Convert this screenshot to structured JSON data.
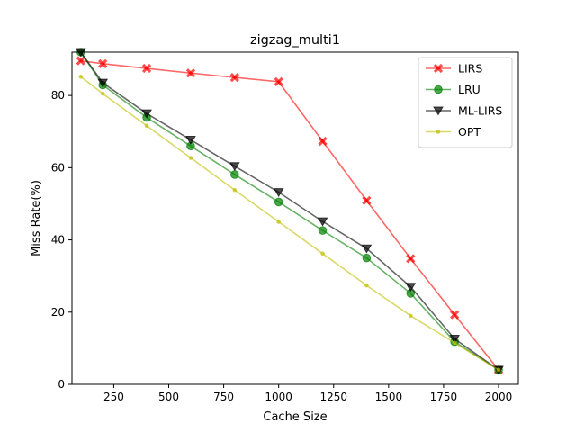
{
  "chart_data": {
    "type": "line",
    "title": "zigzag_multi1",
    "xlabel": "Cache Size",
    "ylabel": "Miss Rate(%)",
    "xlim": [
      60,
      2090
    ],
    "ylim": [
      0,
      92
    ],
    "xticks": [
      250,
      500,
      750,
      1000,
      1250,
      1500,
      1750,
      2000
    ],
    "yticks": [
      0,
      20,
      40,
      60,
      80
    ],
    "grid": false,
    "legend_position": "top-right",
    "x": [
      100,
      200,
      400,
      600,
      800,
      1000,
      1200,
      1400,
      1600,
      1800,
      2000
    ],
    "series": [
      {
        "name": "LIRS",
        "color": "#ff0000",
        "marker": "x",
        "values": [
          89.6,
          88.8,
          87.5,
          86.2,
          85.0,
          83.8,
          67.3,
          50.9,
          34.8,
          19.3,
          4.0
        ]
      },
      {
        "name": "LRU",
        "color": "#008000",
        "marker": "circle",
        "values": [
          92.0,
          82.9,
          73.9,
          66.0,
          58.1,
          50.5,
          42.6,
          35.0,
          25.2,
          11.8,
          4.0
        ]
      },
      {
        "name": "ML-LIRS",
        "color": "#000000",
        "marker": "triangle-down",
        "values": [
          92.0,
          83.5,
          75.0,
          67.7,
          60.4,
          53.2,
          45.1,
          37.6,
          27.0,
          12.6,
          4.0
        ]
      },
      {
        "name": "OPT",
        "color": "#bfbf00",
        "marker": "dot",
        "values": [
          85.2,
          80.5,
          71.6,
          62.7,
          53.8,
          45.0,
          36.2,
          27.4,
          19.0,
          11.5,
          4.0
        ]
      }
    ]
  }
}
